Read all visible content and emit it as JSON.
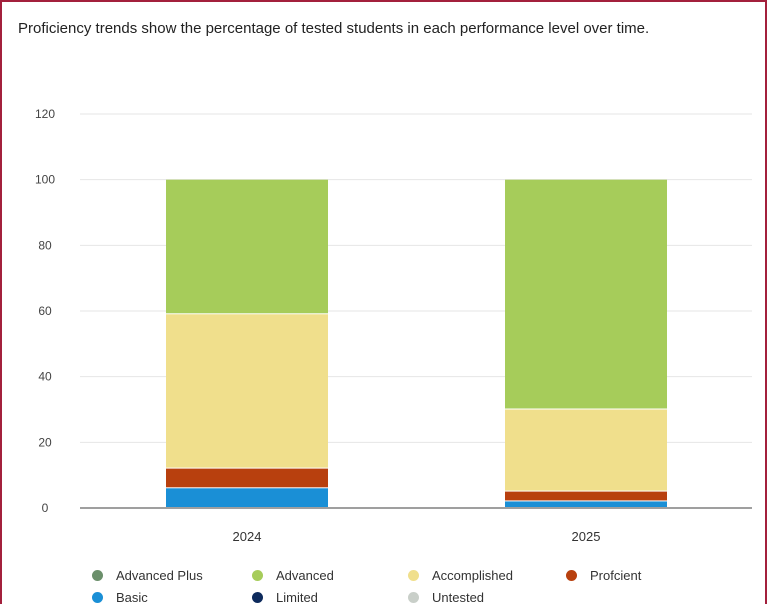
{
  "caption": "Proficiency trends show the percentage of tested students in each performance level over time.",
  "chart_data": {
    "type": "bar",
    "stacked": true,
    "categories": [
      "2024",
      "2025"
    ],
    "ylim": [
      0,
      120
    ],
    "yticks": [
      0,
      20,
      40,
      60,
      80,
      100,
      120
    ],
    "grid": true,
    "legend_position": "bottom",
    "series": [
      {
        "name": "Basic",
        "color": "#1a8fd6",
        "values": [
          6,
          2
        ]
      },
      {
        "name": "Profcient",
        "color": "#b8400e",
        "values": [
          6,
          3
        ]
      },
      {
        "name": "Accomplished",
        "color": "#f0df8c",
        "values": [
          47,
          25
        ]
      },
      {
        "name": "Advanced",
        "color": "#a6cc5a",
        "values": [
          41,
          70
        ]
      },
      {
        "name": "Advanced Plus",
        "color": "#6b8f6b",
        "values": [
          0,
          0
        ]
      },
      {
        "name": "Limited",
        "color": "#0d2a5c",
        "values": [
          0,
          0
        ]
      },
      {
        "name": "Untested",
        "color": "#c9cfc9",
        "values": [
          0,
          0
        ]
      }
    ],
    "legend_order": [
      "Advanced Plus",
      "Advanced",
      "Accomplished",
      "Profcient",
      "Basic",
      "Limited",
      "Untested"
    ]
  }
}
